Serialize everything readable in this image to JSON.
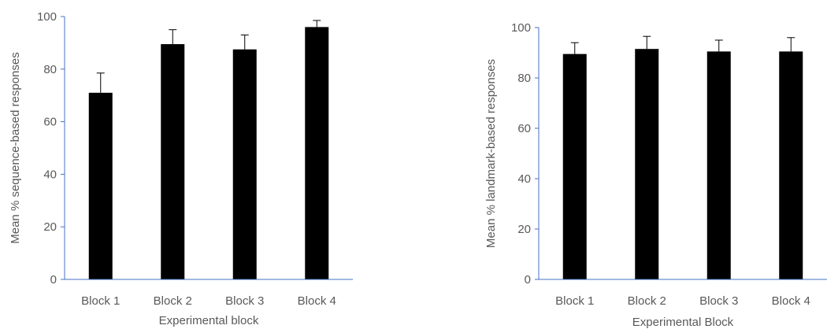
{
  "chart_data": [
    {
      "type": "bar",
      "categories": [
        "Block 1",
        "Block 2",
        "Block 3",
        "Block 4"
      ],
      "values": [
        71,
        89.5,
        87.5,
        96
      ],
      "error_upper": [
        7.5,
        5.5,
        5.5,
        2.5
      ],
      "xlabel": "Experimental block",
      "ylabel": "Mean % sequence-based responses",
      "ylim": [
        0,
        100
      ],
      "yticks": [
        "0",
        "20",
        "40",
        "60",
        "80",
        "100"
      ],
      "grid": false,
      "legend": "none",
      "bar_color": "#000000",
      "axis_color": "#4472c4",
      "text_color": "#595959"
    },
    {
      "type": "bar",
      "categories": [
        "Block 1",
        "Block 2",
        "Block 3",
        "Block 4"
      ],
      "values": [
        89.5,
        91.5,
        90.5,
        90.5
      ],
      "error_upper": [
        4.5,
        5,
        4.5,
        5.5
      ],
      "xlabel": "Experimental Block",
      "ylabel": "Mean % landmark-based responses",
      "ylim": [
        0,
        100
      ],
      "yticks": [
        "0",
        "20",
        "40",
        "60",
        "80",
        "100"
      ],
      "grid": false,
      "legend": "none",
      "bar_color": "#000000",
      "axis_color": "#4472c4",
      "text_color": "#595959"
    }
  ]
}
